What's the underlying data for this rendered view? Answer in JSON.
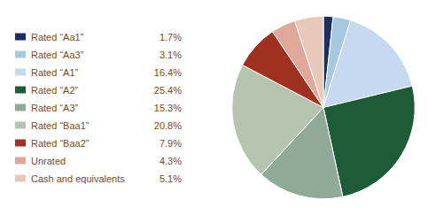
{
  "chart_data": {
    "type": "pie",
    "categories": [
      "Rated “Aa1”",
      "Rated “Aa3”",
      "Rated “A1”",
      "Rated “A2”",
      "Rated “A3”",
      "Rated “Baa1”",
      "Rated “Baa2”",
      "Unrated",
      "Cash and equivalents"
    ],
    "values": [
      1.7,
      3.1,
      16.4,
      25.4,
      15.3,
      20.8,
      7.9,
      4.3,
      5.1
    ],
    "value_labels": [
      "1.7%",
      "3.1%",
      "16.4%",
      "25.4%",
      "15.3%",
      "20.8%",
      "7.9%",
      "4.3%",
      "5.1%"
    ],
    "colors": [
      "#1a3060",
      "#a8c8e0",
      "#c5daf0",
      "#1e5c38",
      "#8faa96",
      "#b5c4ae",
      "#a03020",
      "#e0a898",
      "#e8c8b8"
    ],
    "legend": "left",
    "data_labels": false
  }
}
